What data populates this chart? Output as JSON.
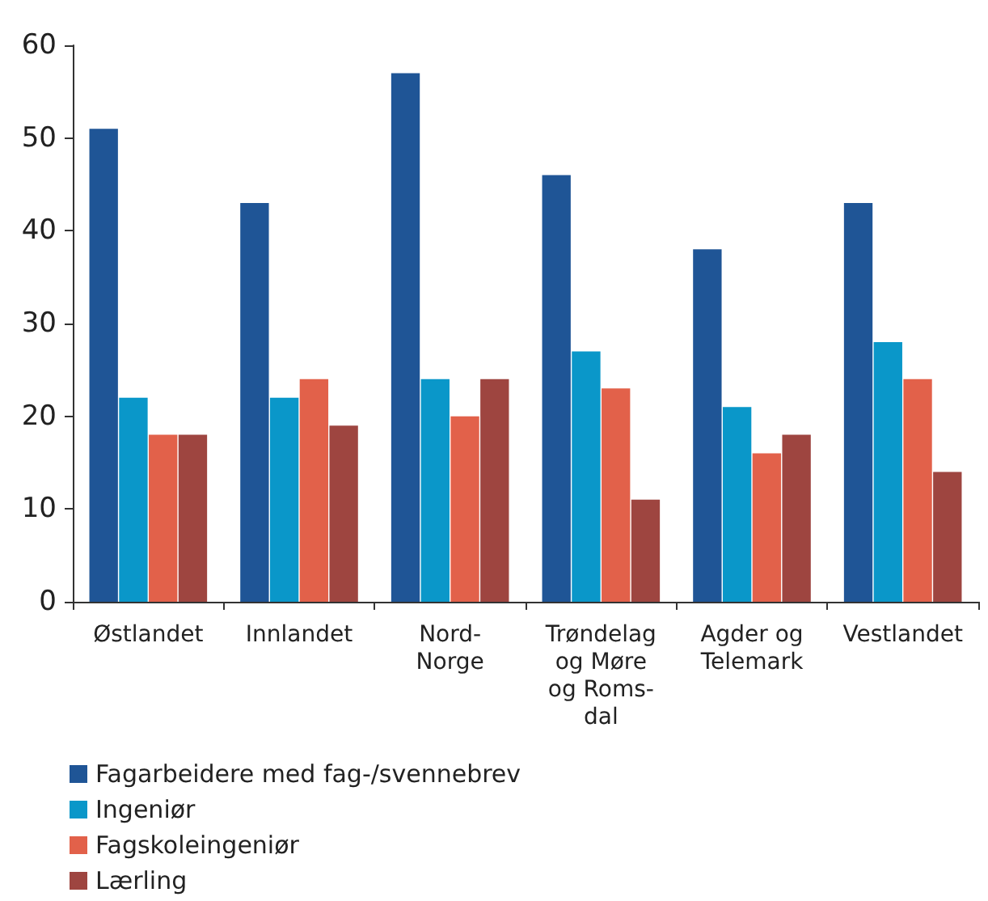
{
  "chart_data": {
    "type": "bar",
    "categories": [
      "Østlandet",
      "Innlandet",
      "Nord-\nNorge",
      "Trøndelag\nog Møre\nog Roms-\ndal",
      "Agder og\nTelemark",
      "Vestlandet"
    ],
    "series": [
      {
        "name": "Fagarbeidere med fag-/svennebrev",
        "color": "#1f5596",
        "values": [
          51,
          43,
          57,
          46,
          38,
          43
        ]
      },
      {
        "name": "Ingeniør",
        "color": "#0a97c9",
        "values": [
          22,
          22,
          24,
          27,
          21,
          28
        ]
      },
      {
        "name": "Fagskoleingeniør",
        "color": "#e2614a",
        "values": [
          18,
          24,
          20,
          23,
          16,
          24
        ]
      },
      {
        "name": "Lærling",
        "color": "#9e4540",
        "values": [
          18,
          19,
          24,
          11,
          18,
          14
        ]
      }
    ],
    "ylim": [
      0,
      60
    ],
    "yticks": [
      0,
      10,
      20,
      30,
      40,
      50,
      60
    ],
    "grid": false,
    "legend": "bottom left"
  }
}
